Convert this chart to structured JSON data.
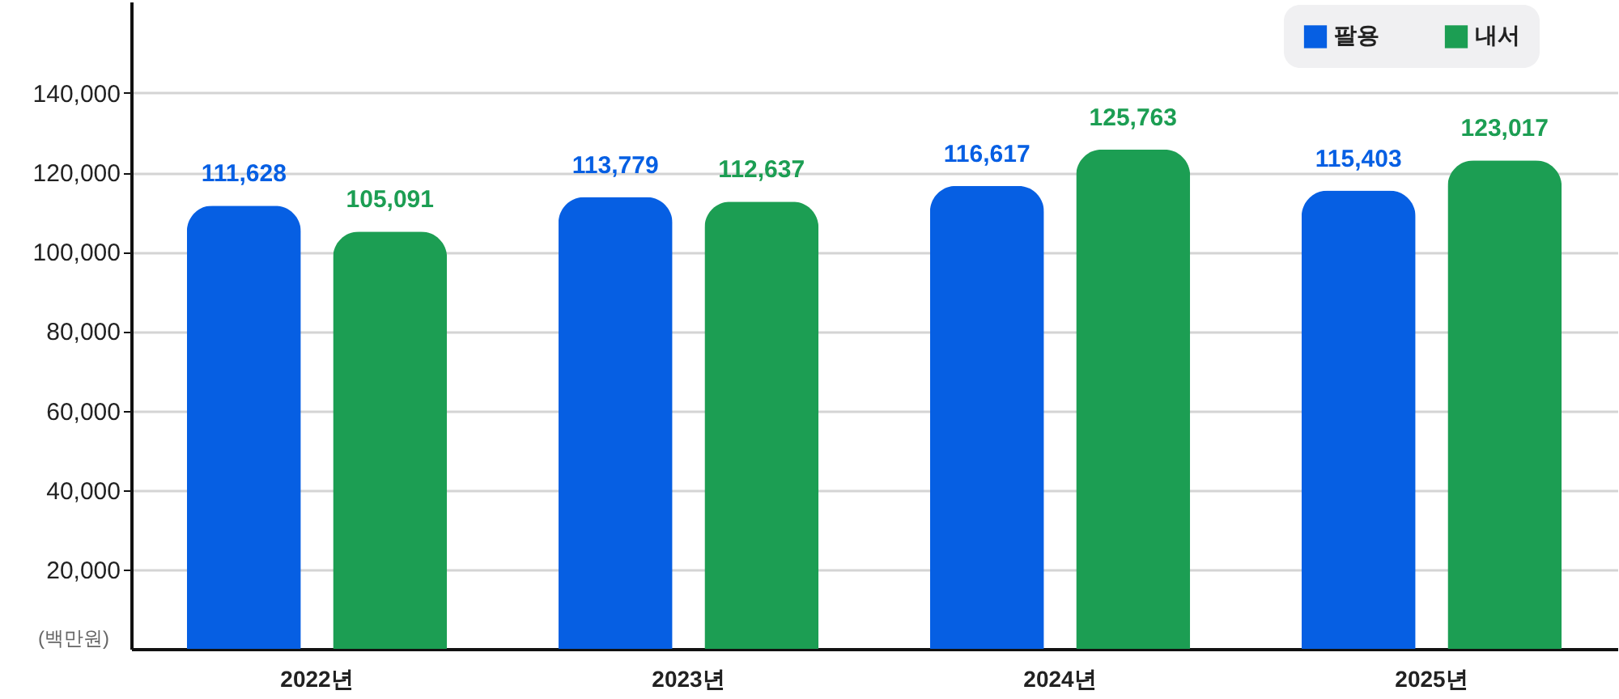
{
  "chart_data": {
    "type": "bar",
    "ylabel": "(백만원)",
    "categories": [
      "2022년",
      "2023년",
      "2024년",
      "2025년"
    ],
    "series": [
      {
        "name": "팔용",
        "color": "#065fe3",
        "values": [
          111628,
          113779,
          116617,
          115403
        ],
        "value_labels": [
          "111,628",
          "113,779",
          "116,617",
          "115,403"
        ]
      },
      {
        "name": "내서",
        "color": "#1c9e53",
        "values": [
          105091,
          112637,
          125763,
          123017
        ],
        "value_labels": [
          "105,091",
          "112,637",
          "125,763",
          "123,017"
        ]
      }
    ],
    "ylim": [
      0,
      163000
    ],
    "yticks": [
      {
        "value": 20000,
        "label": "20,000"
      },
      {
        "value": 40000,
        "label": "40,000"
      },
      {
        "value": 60000,
        "label": "60,000"
      },
      {
        "value": 80000,
        "label": "80,000"
      },
      {
        "value": 100000,
        "label": "100,000"
      },
      {
        "value": 120000,
        "label": "120,000"
      },
      {
        "value": 140000,
        "label": "140,000"
      }
    ],
    "grid": "y",
    "legend": "top right"
  }
}
